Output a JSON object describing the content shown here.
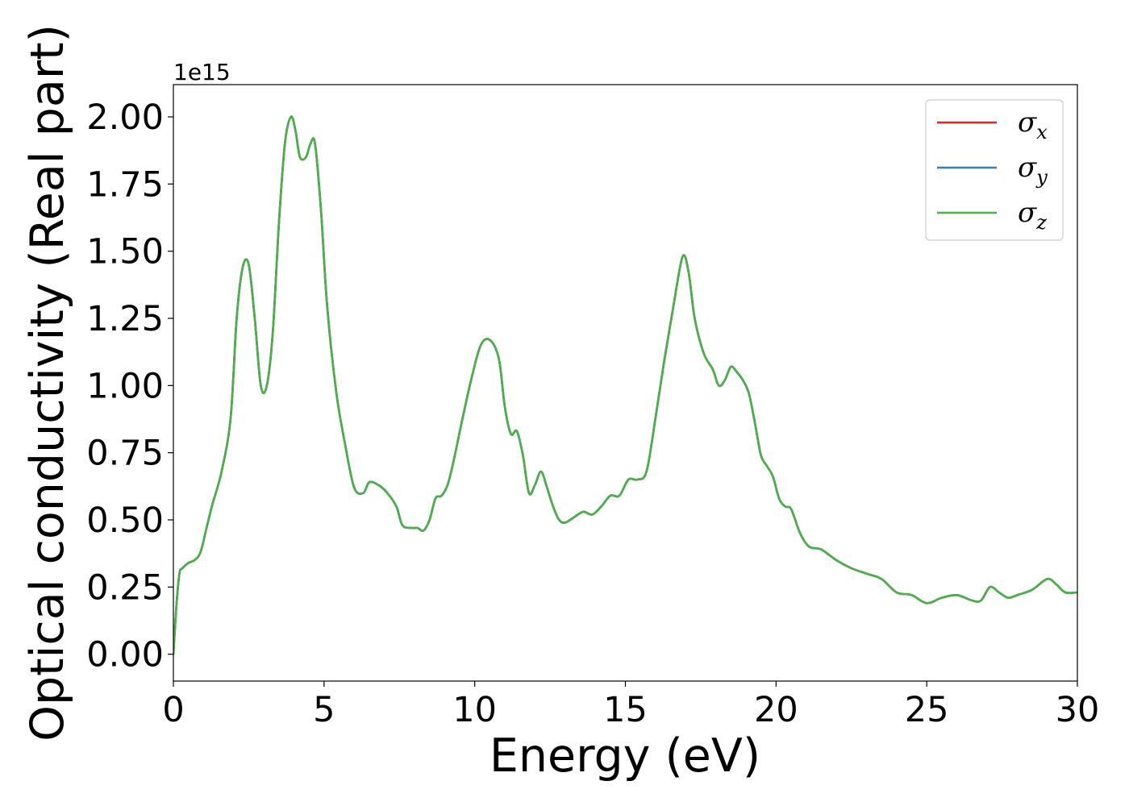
{
  "chart_data": {
    "type": "line",
    "title": "",
    "xlabel": "Energy (eV)",
    "ylabel": "Optical conductivity (Real part)",
    "y_offset_label": "1e15",
    "y_scale": 1000000000000000.0,
    "xlim": [
      0,
      30
    ],
    "ylim": [
      -0.1,
      2.12
    ],
    "grid": false,
    "legend_position": "top-right",
    "x_ticks": [
      0,
      5,
      10,
      15,
      20,
      25,
      30
    ],
    "x_tick_labels": [
      "0",
      "5",
      "10",
      "15",
      "20",
      "25",
      "30"
    ],
    "y_ticks": [
      0,
      0.25,
      0.5,
      0.75,
      1.0,
      1.25,
      1.5,
      1.75,
      2.0
    ],
    "y_tick_labels": [
      "0.00",
      "0.25",
      "0.50",
      "0.75",
      "1.00",
      "1.25",
      "1.50",
      "1.75",
      "2.00"
    ],
    "x": [
      0,
      0.1,
      0.2,
      0.3,
      0.5,
      0.7,
      0.9,
      1.1,
      1.3,
      1.6,
      1.9,
      2.1,
      2.3,
      2.5,
      2.7,
      2.9,
      3.1,
      3.3,
      3.5,
      3.7,
      3.9,
      4.05,
      4.2,
      4.4,
      4.55,
      4.7,
      4.9,
      5.1,
      5.4,
      5.7,
      6.0,
      6.3,
      6.5,
      6.8,
      7.1,
      7.4,
      7.6,
      7.9,
      8.1,
      8.3,
      8.5,
      8.7,
      8.9,
      9.1,
      9.3,
      9.6,
      9.9,
      10.2,
      10.5,
      10.8,
      11.0,
      11.2,
      11.4,
      11.6,
      11.8,
      12.0,
      12.2,
      12.4,
      12.6,
      12.8,
      13.0,
      13.3,
      13.6,
      13.9,
      14.2,
      14.5,
      14.8,
      15.1,
      15.4,
      15.7,
      16.0,
      16.3,
      16.6,
      16.9,
      17.1,
      17.3,
      17.6,
      17.9,
      18.1,
      18.3,
      18.5,
      18.7,
      18.9,
      19.1,
      19.3,
      19.5,
      19.7,
      19.9,
      20.1,
      20.3,
      20.5,
      20.8,
      21.1,
      21.5,
      22.0,
      22.5,
      23.0,
      23.5,
      24.0,
      24.5,
      25.0,
      25.5,
      26.0,
      26.5,
      26.8,
      27.1,
      27.4,
      27.7,
      28.0,
      28.5,
      29.0,
      29.3,
      29.6,
      30.0
    ],
    "series": [
      {
        "name": "σ_x",
        "color": "#d62728",
        "values": [
          0.0,
          0.18,
          0.3,
          0.32,
          0.34,
          0.35,
          0.38,
          0.47,
          0.56,
          0.68,
          0.88,
          1.25,
          1.44,
          1.45,
          1.25,
          1.0,
          1.0,
          1.2,
          1.6,
          1.9,
          2.0,
          1.95,
          1.85,
          1.85,
          1.9,
          1.9,
          1.65,
          1.3,
          0.98,
          0.78,
          0.62,
          0.6,
          0.64,
          0.63,
          0.6,
          0.55,
          0.48,
          0.47,
          0.47,
          0.46,
          0.5,
          0.58,
          0.59,
          0.63,
          0.72,
          0.88,
          1.03,
          1.15,
          1.17,
          1.1,
          0.92,
          0.82,
          0.83,
          0.74,
          0.6,
          0.63,
          0.68,
          0.62,
          0.55,
          0.5,
          0.49,
          0.51,
          0.53,
          0.52,
          0.55,
          0.59,
          0.59,
          0.65,
          0.65,
          0.68,
          0.88,
          1.1,
          1.3,
          1.48,
          1.42,
          1.25,
          1.12,
          1.06,
          1.0,
          1.02,
          1.07,
          1.05,
          1.02,
          0.97,
          0.86,
          0.74,
          0.7,
          0.66,
          0.58,
          0.55,
          0.54,
          0.45,
          0.4,
          0.39,
          0.35,
          0.32,
          0.3,
          0.28,
          0.23,
          0.22,
          0.19,
          0.21,
          0.22,
          0.2,
          0.2,
          0.25,
          0.23,
          0.21,
          0.22,
          0.24,
          0.28,
          0.26,
          0.23,
          0.23
        ]
      },
      {
        "name": "σ_y",
        "color": "#377eb8",
        "values": [
          0.0,
          0.18,
          0.3,
          0.32,
          0.34,
          0.35,
          0.38,
          0.47,
          0.56,
          0.68,
          0.88,
          1.25,
          1.44,
          1.45,
          1.25,
          1.0,
          1.0,
          1.2,
          1.6,
          1.9,
          2.0,
          1.95,
          1.85,
          1.85,
          1.9,
          1.9,
          1.65,
          1.3,
          0.98,
          0.78,
          0.62,
          0.6,
          0.64,
          0.63,
          0.6,
          0.55,
          0.48,
          0.47,
          0.47,
          0.46,
          0.5,
          0.58,
          0.59,
          0.63,
          0.72,
          0.88,
          1.03,
          1.15,
          1.17,
          1.1,
          0.92,
          0.82,
          0.83,
          0.74,
          0.6,
          0.63,
          0.68,
          0.62,
          0.55,
          0.5,
          0.49,
          0.51,
          0.53,
          0.52,
          0.55,
          0.59,
          0.59,
          0.65,
          0.65,
          0.68,
          0.88,
          1.1,
          1.3,
          1.48,
          1.42,
          1.25,
          1.12,
          1.06,
          1.0,
          1.02,
          1.07,
          1.05,
          1.02,
          0.97,
          0.86,
          0.74,
          0.7,
          0.66,
          0.58,
          0.55,
          0.54,
          0.45,
          0.4,
          0.39,
          0.35,
          0.32,
          0.3,
          0.28,
          0.23,
          0.22,
          0.19,
          0.21,
          0.22,
          0.2,
          0.2,
          0.25,
          0.23,
          0.21,
          0.22,
          0.24,
          0.28,
          0.26,
          0.23,
          0.23
        ]
      },
      {
        "name": "σ_z",
        "color": "#4daf4a",
        "values": [
          0.0,
          0.18,
          0.3,
          0.32,
          0.34,
          0.35,
          0.38,
          0.47,
          0.56,
          0.68,
          0.88,
          1.25,
          1.44,
          1.45,
          1.25,
          1.0,
          1.0,
          1.2,
          1.6,
          1.9,
          2.0,
          1.95,
          1.85,
          1.85,
          1.9,
          1.9,
          1.65,
          1.3,
          0.98,
          0.78,
          0.62,
          0.6,
          0.64,
          0.63,
          0.6,
          0.55,
          0.48,
          0.47,
          0.47,
          0.46,
          0.5,
          0.58,
          0.59,
          0.63,
          0.72,
          0.88,
          1.03,
          1.15,
          1.17,
          1.1,
          0.92,
          0.82,
          0.83,
          0.74,
          0.6,
          0.63,
          0.68,
          0.62,
          0.55,
          0.5,
          0.49,
          0.51,
          0.53,
          0.52,
          0.55,
          0.59,
          0.59,
          0.65,
          0.65,
          0.68,
          0.88,
          1.1,
          1.3,
          1.48,
          1.42,
          1.25,
          1.12,
          1.06,
          1.0,
          1.02,
          1.07,
          1.05,
          1.02,
          0.97,
          0.86,
          0.74,
          0.7,
          0.66,
          0.58,
          0.55,
          0.54,
          0.45,
          0.4,
          0.39,
          0.35,
          0.32,
          0.3,
          0.28,
          0.23,
          0.22,
          0.19,
          0.21,
          0.22,
          0.2,
          0.2,
          0.25,
          0.23,
          0.21,
          0.22,
          0.24,
          0.28,
          0.26,
          0.23,
          0.23
        ]
      }
    ],
    "legend": [
      {
        "symbol": "σ",
        "subscript": "x",
        "color": "#d62728"
      },
      {
        "symbol": "σ",
        "subscript": "y",
        "color": "#377eb8"
      },
      {
        "symbol": "σ",
        "subscript": "z",
        "color": "#4daf4a"
      }
    ]
  }
}
